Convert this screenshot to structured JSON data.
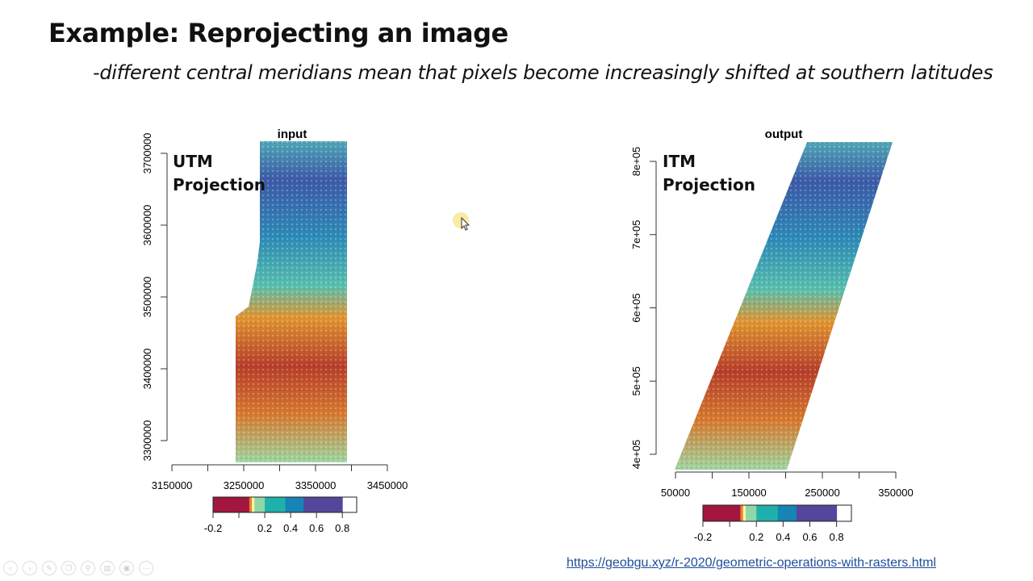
{
  "slide": {
    "title": "Example:  Reprojecting an image",
    "subtitle": "-different central meridians mean that pixels become increasingly shifted at southern latitudes",
    "link": "https://geobgu.xyz/r-2020/geometric-operations-with-rasters.html"
  },
  "toolbar_icons": [
    "previous-icon",
    "next-icon",
    "pen-icon",
    "copy-icon",
    "zoom-icon",
    "subtitles-icon",
    "camera-icon",
    "more-icon"
  ],
  "chart_data": [
    {
      "type": "heatmap",
      "title": "input",
      "annotation": "UTM\nProjection",
      "annotation_lines": [
        "UTM",
        "Projection"
      ],
      "x_ticks": [
        3150000,
        3200000,
        3250000,
        3300000,
        3350000,
        3400000,
        3450000
      ],
      "x_tick_labels": [
        "3150000",
        "3250000",
        "3350000",
        "3450000"
      ],
      "y_ticks": [
        3300000,
        3400000,
        3500000,
        3600000,
        3700000
      ],
      "y_tick_labels": [
        "3300000",
        "3400000",
        "3500000",
        "3600000",
        "3700000"
      ],
      "xlim": [
        3150000,
        3450000
      ],
      "ylim": [
        3280000,
        3710000
      ],
      "legend": {
        "range": [
          -0.2,
          0.8
        ],
        "tick_labels": [
          "-0.2",
          "0.2",
          "0.4",
          "0.6",
          "0.8"
        ],
        "ticks": [
          -0.2,
          0,
          0.2,
          0.4,
          0.6,
          0.8
        ]
      }
    },
    {
      "type": "heatmap",
      "title": "output",
      "annotation_lines": [
        "ITM",
        "Projection"
      ],
      "x_ticks": [
        50000,
        100000,
        150000,
        200000,
        250000,
        300000,
        350000
      ],
      "x_tick_labels": [
        "50000",
        "150000",
        "250000",
        "350000"
      ],
      "y_ticks": [
        400000,
        500000,
        600000,
        700000,
        800000
      ],
      "y_tick_labels": [
        "4e+05",
        "5e+05",
        "6e+05",
        "7e+05",
        "8e+05"
      ],
      "xlim": [
        50000,
        350000
      ],
      "ylim": [
        380000,
        820000
      ],
      "legend": {
        "range": [
          -0.2,
          0.8
        ],
        "tick_labels": [
          "-0.2",
          "0.2",
          "0.4",
          "0.6",
          "0.8"
        ],
        "ticks": [
          -0.2,
          0,
          0.2,
          0.4,
          0.6,
          0.8
        ]
      }
    }
  ],
  "colors": {
    "low": "#a3163f",
    "orange": "#e8822e",
    "yellow": "#fff2a0",
    "lightgreen": "#8fd7a8",
    "teal": "#1fb0aa",
    "blue": "#1684b4",
    "purple": "#54479b",
    "link": "#1f4e9a"
  }
}
